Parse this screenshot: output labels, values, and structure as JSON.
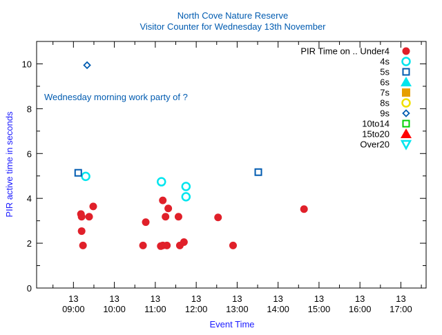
{
  "chart_data": {
    "type": "scatter",
    "title": "North Cove Nature Reserve",
    "subtitle": "Visitor Counter for Wednesday 13th November",
    "xlabel": "Event Time",
    "ylabel": "PIR active time in seconds",
    "annotation": "Wednesday morning work party of ?",
    "xlim": [
      "08:06",
      "17:37"
    ],
    "ylim": [
      0,
      11
    ],
    "x_ticks": [
      {
        "day": "13",
        "time": "09:00"
      },
      {
        "day": "13",
        "time": "10:00"
      },
      {
        "day": "13",
        "time": "11:00"
      },
      {
        "day": "13",
        "time": "12:00"
      },
      {
        "day": "13",
        "time": "13:00"
      },
      {
        "day": "13",
        "time": "14:00"
      },
      {
        "day": "13",
        "time": "15:00"
      },
      {
        "day": "13",
        "time": "16:00"
      },
      {
        "day": "13",
        "time": "17:00"
      }
    ],
    "y_ticks": [
      "0",
      "2",
      "4",
      "6",
      "8",
      "10"
    ],
    "legend_position": "top-right",
    "series": [
      {
        "name": "PIR Time on .. Under4",
        "marker": "filled-circle",
        "color": "#e0202a",
        "points": [
          [
            "09:11",
            3.3
          ],
          [
            "09:12",
            3.18
          ],
          [
            "09:23",
            3.18
          ],
          [
            "09:29",
            3.64
          ],
          [
            "09:12",
            2.54
          ],
          [
            "09:14",
            1.9
          ],
          [
            "10:42",
            1.9
          ],
          [
            "10:46",
            2.94
          ],
          [
            "11:08",
            1.87
          ],
          [
            "11:11",
            1.9
          ],
          [
            "11:17",
            1.9
          ],
          [
            "11:11",
            3.91
          ],
          [
            "11:19",
            3.55
          ],
          [
            "11:15",
            3.18
          ],
          [
            "11:34",
            3.18
          ],
          [
            "11:36",
            1.9
          ],
          [
            "11:42",
            2.05
          ],
          [
            "12:32",
            3.15
          ],
          [
            "12:54",
            1.9
          ],
          [
            "14:38",
            3.52
          ]
        ]
      },
      {
        "name": "4s",
        "marker": "open-circle",
        "color": "#00e5ee",
        "points": [
          [
            "09:18",
            4.98
          ],
          [
            "11:09",
            4.74
          ],
          [
            "11:45",
            4.53
          ],
          [
            "11:45",
            4.07
          ]
        ]
      },
      {
        "name": "5s",
        "marker": "open-square",
        "color": "#005bb0",
        "points": [
          [
            "09:07",
            5.14
          ],
          [
            "13:31",
            5.17
          ]
        ]
      },
      {
        "name": "6s",
        "marker": "filled-triangle",
        "color": "#00e5ee",
        "points": []
      },
      {
        "name": "7s",
        "marker": "filled-square",
        "color": "#e69f00",
        "points": []
      },
      {
        "name": "8s",
        "marker": "open-circle",
        "color": "#f0e000",
        "points": []
      },
      {
        "name": "9s",
        "marker": "open-diamond",
        "color": "#005bb0",
        "points": [
          [
            "09:20",
            9.94
          ]
        ]
      },
      {
        "name": "10to14",
        "marker": "open-square",
        "color": "#00d000",
        "points": []
      },
      {
        "name": "15to20",
        "marker": "filled-triangle",
        "color": "#ff0000",
        "points": []
      },
      {
        "name": "Over20",
        "marker": "open-triangle-down",
        "color": "#00e5ee",
        "points": []
      }
    ]
  }
}
